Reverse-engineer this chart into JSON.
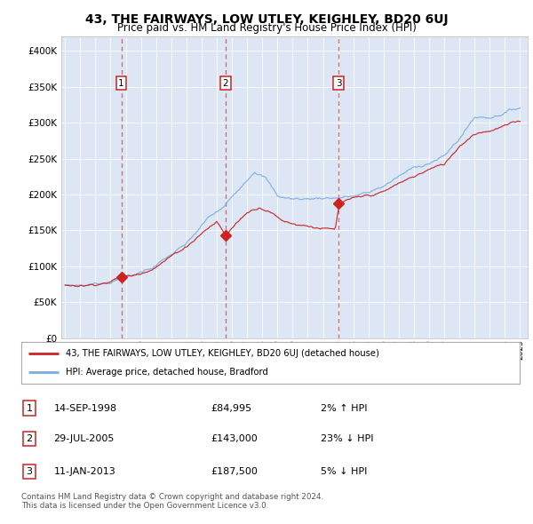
{
  "title": "43, THE FAIRWAYS, LOW UTLEY, KEIGHLEY, BD20 6UJ",
  "subtitle": "Price paid vs. HM Land Registry's House Price Index (HPI)",
  "legend_line1": "43, THE FAIRWAYS, LOW UTLEY, KEIGHLEY, BD20 6UJ (detached house)",
  "legend_line2": "HPI: Average price, detached house, Bradford",
  "table_rows": [
    {
      "num": "1",
      "date": "14-SEP-1998",
      "price": "£84,995",
      "pct": "2% ↑ HPI"
    },
    {
      "num": "2",
      "date": "29-JUL-2005",
      "price": "£143,000",
      "pct": "23% ↓ HPI"
    },
    {
      "num": "3",
      "date": "11-JAN-2013",
      "price": "£187,500",
      "pct": "5% ↓ HPI"
    }
  ],
  "footer": "Contains HM Land Registry data © Crown copyright and database right 2024.\nThis data is licensed under the Open Government Licence v3.0.",
  "hpi_color": "#7aacdc",
  "price_color": "#cc2222",
  "bg_color": "#dce6f5",
  "sale_dates_yr": [
    1998.706,
    2005.576,
    2013.036
  ],
  "sale_prices": [
    84995,
    143000,
    187500
  ],
  "sale_labels": [
    "1",
    "2",
    "3"
  ],
  "ylim": [
    0,
    420000
  ],
  "yticks": [
    0,
    50000,
    100000,
    150000,
    200000,
    250000,
    300000,
    350000,
    400000
  ],
  "xstart": 1994.75,
  "xend": 2025.5
}
